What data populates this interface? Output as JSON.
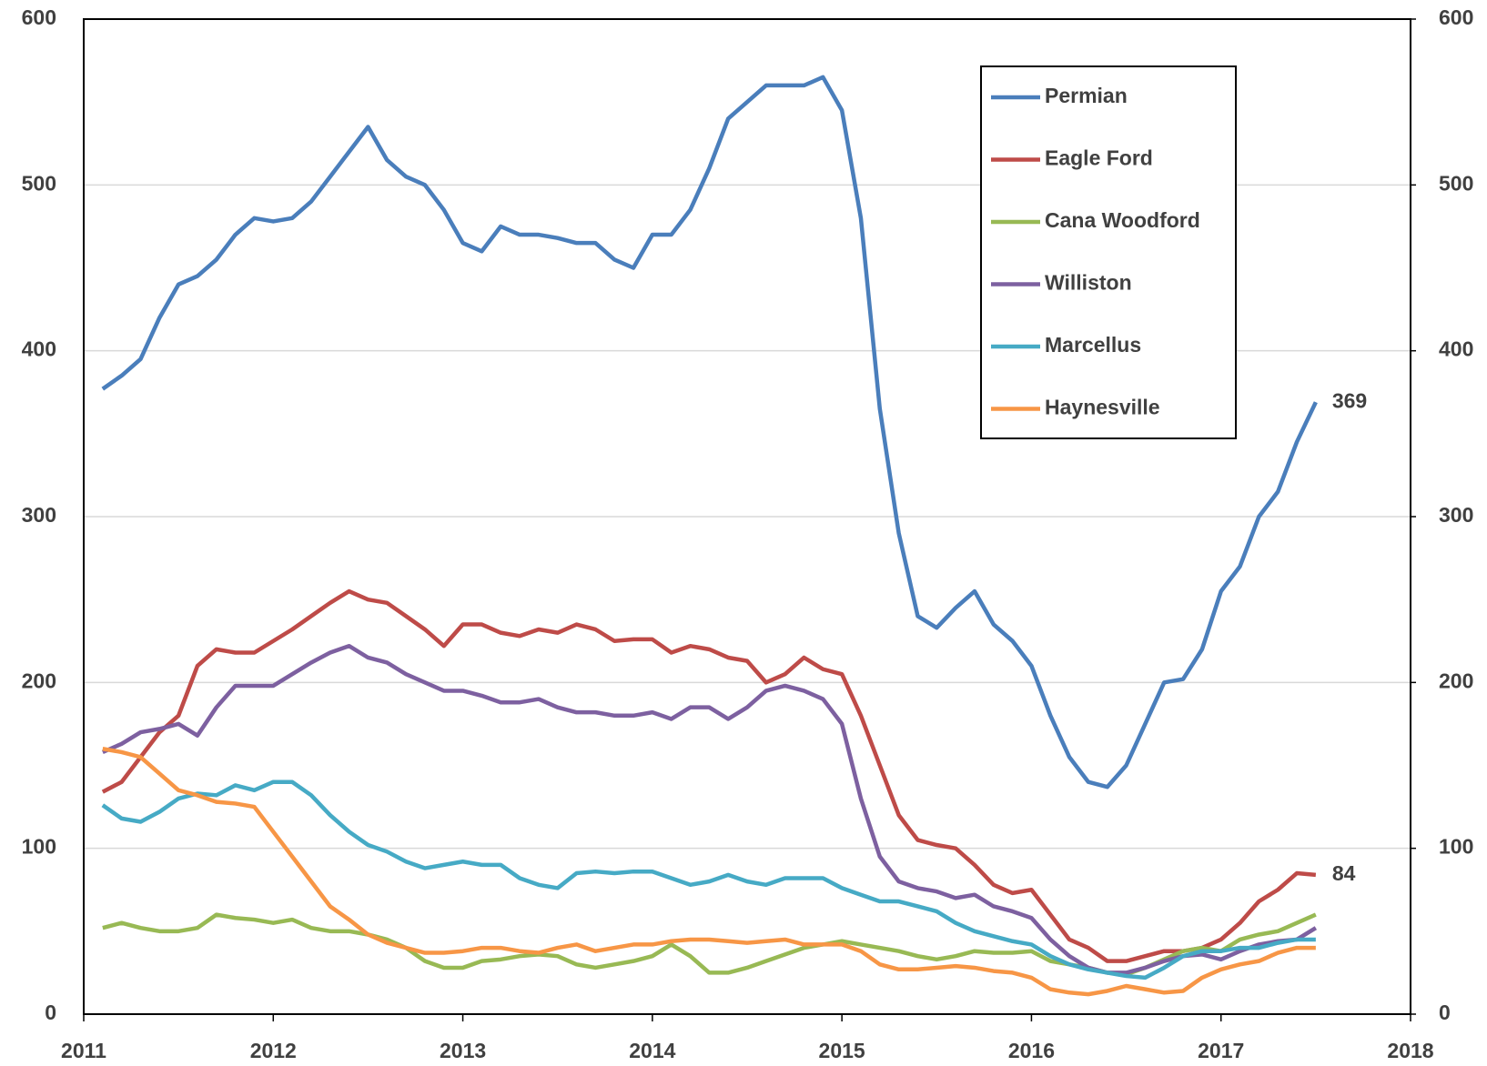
{
  "chart_data": {
    "type": "line",
    "x": [
      2011.1,
      2011.2,
      2011.3,
      2011.4,
      2011.5,
      2011.6,
      2011.7,
      2011.8,
      2011.9,
      2012.0,
      2012.1,
      2012.2,
      2012.3,
      2012.4,
      2012.5,
      2012.6,
      2012.7,
      2012.8,
      2012.9,
      2013.0,
      2013.1,
      2013.2,
      2013.3,
      2013.4,
      2013.5,
      2013.6,
      2013.7,
      2013.8,
      2013.9,
      2014.0,
      2014.1,
      2014.2,
      2014.3,
      2014.4,
      2014.5,
      2014.6,
      2014.7,
      2014.8,
      2014.9,
      2015.0,
      2015.1,
      2015.2,
      2015.3,
      2015.4,
      2015.5,
      2015.6,
      2015.7,
      2015.8,
      2015.9,
      2016.0,
      2016.1,
      2016.2,
      2016.3,
      2016.4,
      2016.5,
      2016.6,
      2016.7,
      2016.8,
      2016.9,
      2017.0,
      2017.1,
      2017.2,
      2017.3,
      2017.4,
      2017.5
    ],
    "series": [
      {
        "name": "Permian",
        "color": "#4a7ebb",
        "end_label": 369,
        "values": [
          377,
          385,
          395,
          420,
          440,
          445,
          455,
          470,
          480,
          478,
          480,
          490,
          505,
          520,
          535,
          515,
          505,
          500,
          485,
          465,
          460,
          475,
          470,
          470,
          468,
          465,
          465,
          455,
          450,
          470,
          470,
          485,
          510,
          540,
          550,
          560,
          560,
          560,
          565,
          545,
          480,
          365,
          290,
          240,
          233,
          245,
          255,
          235,
          225,
          210,
          180,
          155,
          140,
          137,
          150,
          175,
          200,
          202,
          220,
          255,
          270,
          300,
          315,
          345,
          369
        ]
      },
      {
        "name": "Eagle Ford",
        "color": "#be4b48",
        "end_label": 84,
        "values": [
          134,
          140,
          155,
          170,
          180,
          210,
          220,
          218,
          218,
          225,
          232,
          240,
          248,
          255,
          250,
          248,
          240,
          232,
          222,
          235,
          235,
          230,
          228,
          232,
          230,
          235,
          232,
          225,
          226,
          226,
          218,
          222,
          220,
          215,
          213,
          200,
          205,
          215,
          208,
          205,
          180,
          150,
          120,
          105,
          102,
          100,
          90,
          78,
          73,
          75,
          60,
          45,
          40,
          32,
          32,
          35,
          38,
          38,
          40,
          45,
          55,
          68,
          75,
          85,
          84
        ]
      },
      {
        "name": "Cana Woodford",
        "color": "#98b954",
        "values": [
          52,
          55,
          52,
          50,
          50,
          52,
          60,
          58,
          57,
          55,
          57,
          52,
          50,
          50,
          48,
          45,
          40,
          32,
          28,
          28,
          32,
          33,
          35,
          36,
          35,
          30,
          28,
          30,
          32,
          35,
          42,
          35,
          25,
          25,
          28,
          32,
          36,
          40,
          42,
          44,
          42,
          40,
          38,
          35,
          33,
          35,
          38,
          37,
          37,
          38,
          32,
          30,
          28,
          25,
          24,
          28,
          33,
          38,
          40,
          38,
          45,
          48,
          50,
          55,
          60
        ]
      },
      {
        "name": "Williston",
        "color": "#7d60a0",
        "values": [
          158,
          163,
          170,
          172,
          175,
          168,
          185,
          198,
          198,
          198,
          205,
          212,
          218,
          222,
          215,
          212,
          205,
          200,
          195,
          195,
          192,
          188,
          188,
          190,
          185,
          182,
          182,
          180,
          180,
          182,
          178,
          185,
          185,
          178,
          185,
          195,
          198,
          195,
          190,
          175,
          130,
          95,
          80,
          76,
          74,
          70,
          72,
          65,
          62,
          58,
          45,
          35,
          28,
          25,
          25,
          28,
          32,
          35,
          36,
          33,
          38,
          42,
          44,
          45,
          52
        ]
      },
      {
        "name": "Marcellus",
        "color": "#46aac5",
        "values": [
          126,
          118,
          116,
          122,
          130,
          133,
          132,
          138,
          135,
          140,
          140,
          132,
          120,
          110,
          102,
          98,
          92,
          88,
          90,
          92,
          90,
          90,
          82,
          78,
          76,
          85,
          86,
          85,
          86,
          86,
          82,
          78,
          80,
          84,
          80,
          78,
          82,
          82,
          82,
          76,
          72,
          68,
          68,
          65,
          62,
          55,
          50,
          47,
          44,
          42,
          35,
          30,
          27,
          25,
          23,
          22,
          28,
          35,
          38,
          38,
          40,
          40,
          43,
          45,
          45
        ]
      },
      {
        "name": "Haynesville",
        "color": "#f79646",
        "values": [
          160,
          158,
          155,
          145,
          135,
          132,
          128,
          127,
          125,
          110,
          95,
          80,
          65,
          57,
          48,
          43,
          40,
          37,
          37,
          38,
          40,
          40,
          38,
          37,
          40,
          42,
          38,
          40,
          42,
          42,
          44,
          45,
          45,
          44,
          43,
          44,
          45,
          42,
          42,
          42,
          38,
          30,
          27,
          27,
          28,
          29,
          28,
          26,
          25,
          22,
          15,
          13,
          12,
          14,
          17,
          15,
          13,
          14,
          22,
          27,
          30,
          32,
          37,
          40,
          40
        ]
      }
    ],
    "xlim": [
      2011,
      2018
    ],
    "xticks": [
      2011,
      2012,
      2013,
      2014,
      2015,
      2016,
      2017,
      2018
    ],
    "ylim": [
      0,
      600
    ],
    "yticks": [
      0,
      100,
      200,
      300,
      400,
      500,
      600
    ],
    "y2lim": [
      0,
      600
    ],
    "y2ticks": [
      0,
      100,
      200,
      300,
      400,
      500,
      600
    ],
    "grid": true,
    "legend": "upper right"
  }
}
